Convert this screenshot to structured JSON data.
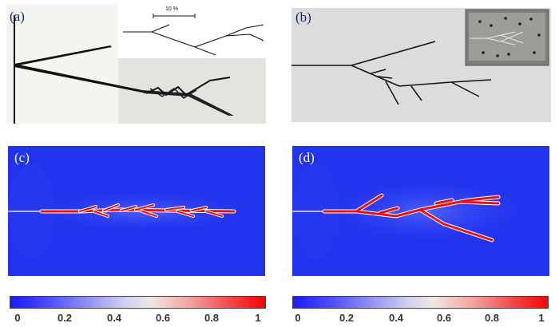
{
  "panels": {
    "a": {
      "label": "(a)",
      "scale_text": "10 %"
    },
    "b": {
      "label": "(b)"
    },
    "c": {
      "label": "(c)"
    },
    "d": {
      "label": "(d)"
    }
  },
  "colorbar": {
    "ticks": [
      "0",
      "0.2",
      "0.4",
      "0.6",
      "0.8",
      "1"
    ],
    "colors": [
      "#1a1aff",
      "#ffffff",
      "#ff0000"
    ]
  },
  "colors": {
    "field_blue": "#2233ee",
    "crack_red": "#e81010",
    "panel_gray": "#dcdcdc"
  }
}
